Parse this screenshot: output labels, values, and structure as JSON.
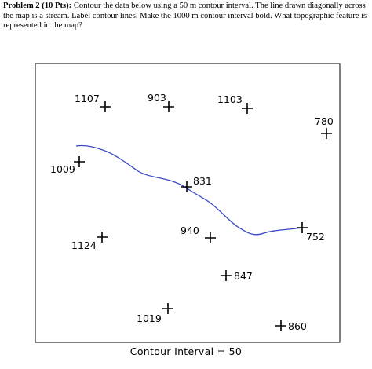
{
  "problem": {
    "label": "Problem 2 (10 Pts):",
    "text": " Contour the data below using a 50 m contour interval. The line drawn diagonally across the map is a stream. Label contour lines. Make the 1000 m contour interval bold. What topographic feature is represented in the map?"
  },
  "map": {
    "stream_color": "#3a48c8",
    "points": [
      {
        "id": "p1107",
        "label": "1107"
      },
      {
        "id": "p903",
        "label": "903"
      },
      {
        "id": "p1103",
        "label": "1103"
      },
      {
        "id": "p780",
        "label": "780"
      },
      {
        "id": "p1009",
        "label": "1009"
      },
      {
        "id": "p831",
        "label": "831"
      },
      {
        "id": "p940",
        "label": "940"
      },
      {
        "id": "p752",
        "label": "752"
      },
      {
        "id": "p1124",
        "label": "1124"
      },
      {
        "id": "p847",
        "label": "847"
      },
      {
        "id": "p1019",
        "label": "1019"
      },
      {
        "id": "p860",
        "label": "860"
      }
    ],
    "caption": "Contour Interval = 50"
  }
}
